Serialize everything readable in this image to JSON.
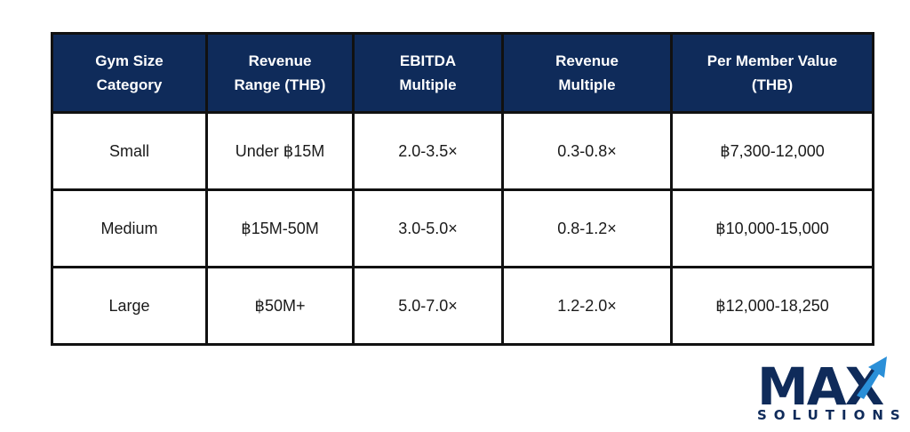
{
  "table": {
    "headers": [
      [
        "Gym Size",
        "Category"
      ],
      [
        "Revenue",
        "Range (THB)"
      ],
      [
        "EBITDA",
        "Multiple"
      ],
      [
        "Revenue",
        "Multiple"
      ],
      [
        "Per Member Value",
        "(THB)"
      ]
    ],
    "rows": [
      [
        "Small",
        "Under ฿15M",
        "2.0-3.5×",
        "0.3-0.8×",
        "฿7,300-12,000"
      ],
      [
        "Medium",
        "฿15M-50M",
        "3.0-5.0×",
        "0.8-1.2×",
        "฿10,000-15,000"
      ],
      [
        "Large",
        "฿50M+",
        "5.0-7.0×",
        "1.2-2.0×",
        "฿12,000-18,250"
      ]
    ]
  },
  "logo": {
    "word": "MAX",
    "subtitle": "SOLUTIONS",
    "primary_color": "#0f2b5a",
    "accent_color": "#2a8fd8",
    "icon": "up-arrow-icon"
  },
  "colors": {
    "header_bg": "#0f2b5a",
    "header_text": "#ffffff",
    "border": "#111111"
  }
}
